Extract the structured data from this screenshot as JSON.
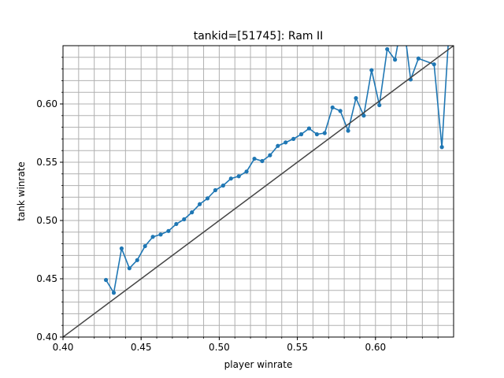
{
  "chart_data": {
    "type": "line",
    "title": "tankid=[51745]: Ram II",
    "xlabel": "player winrate",
    "ylabel": "tank winrate",
    "xlim": [
      0.4,
      0.65
    ],
    "ylim": [
      0.4,
      0.65
    ],
    "x_ticks": [
      "0.40",
      "0.45",
      "0.50",
      "0.55",
      "0.60"
    ],
    "y_ticks": [
      "0.40",
      "0.45",
      "0.50",
      "0.55",
      "0.60"
    ],
    "x_tick_values": [
      0.4,
      0.45,
      0.5,
      0.55,
      0.6
    ],
    "y_tick_values": [
      0.4,
      0.45,
      0.5,
      0.55,
      0.6
    ],
    "minor_step": 0.01,
    "grid": true,
    "series": [
      {
        "color": "#1f77b4",
        "marker": "circle",
        "x": [
          0.4275,
          0.4325,
          0.4375,
          0.4425,
          0.4475,
          0.4525,
          0.4575,
          0.4625,
          0.4675,
          0.4725,
          0.4775,
          0.4825,
          0.4875,
          0.4925,
          0.4975,
          0.5025,
          0.5075,
          0.5125,
          0.5175,
          0.5225,
          0.5275,
          0.5325,
          0.5375,
          0.5425,
          0.5475,
          0.5525,
          0.5575,
          0.5625,
          0.5675,
          0.5725,
          0.5775,
          0.5825,
          0.5875,
          0.5925,
          0.5975,
          0.6025,
          0.6075,
          0.6125,
          0.6175,
          0.6225,
          0.6275,
          0.6375,
          0.6425,
          0.6475
        ],
        "y": [
          0.449,
          0.438,
          0.476,
          0.459,
          0.466,
          0.478,
          0.486,
          0.488,
          0.491,
          0.497,
          0.501,
          0.507,
          0.514,
          0.519,
          0.526,
          0.53,
          0.536,
          0.538,
          0.542,
          0.553,
          0.551,
          0.556,
          0.564,
          0.567,
          0.57,
          0.574,
          0.579,
          0.574,
          0.575,
          0.597,
          0.594,
          0.577,
          0.605,
          0.59,
          0.629,
          0.599,
          0.647,
          0.638,
          0.675,
          0.621,
          0.639,
          0.634,
          0.563,
          0.672
        ]
      },
      {
        "color": "#444444",
        "marker": "none",
        "x": [
          0.4,
          0.65
        ],
        "y": [
          0.4,
          0.65
        ]
      }
    ]
  }
}
